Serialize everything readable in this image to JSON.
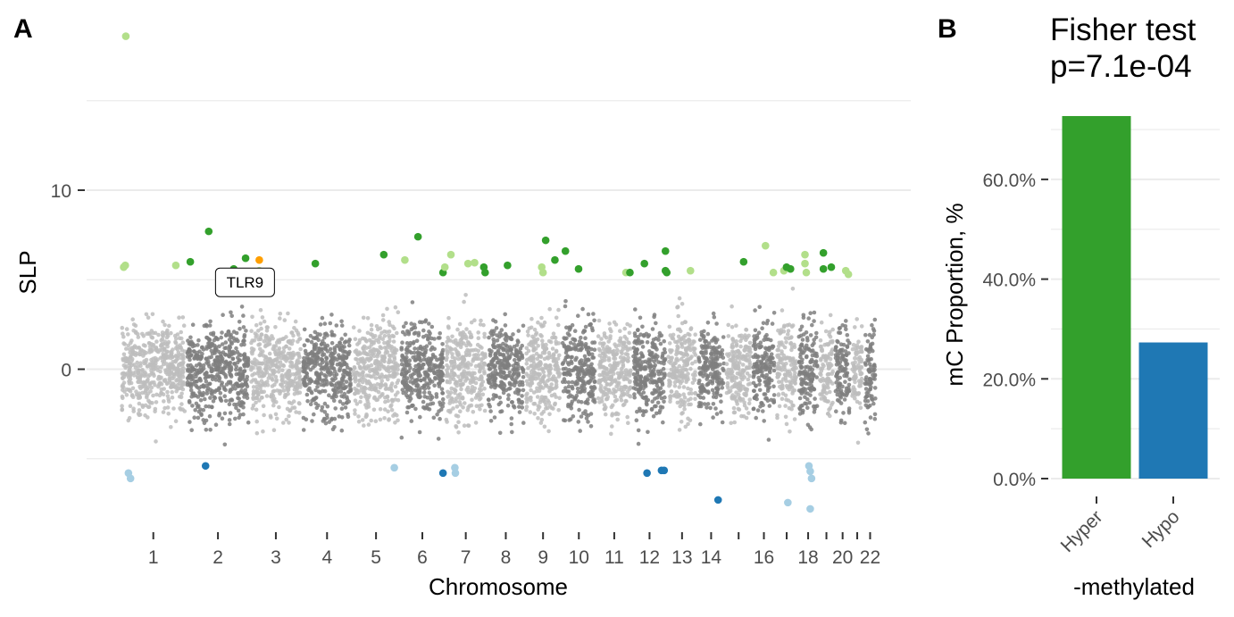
{
  "panels": {
    "a": {
      "label": "A"
    },
    "b": {
      "label": "B",
      "title_line1": "Fisher test",
      "title_line2": "p=7.1e-04"
    }
  },
  "colors": {
    "chr_light": "#bdbdbd",
    "chr_dark": "#7f7f7f",
    "hyper_sig": "#33a02c",
    "hyper_weak": "#b2df8a",
    "hypo_sig": "#1f78b4",
    "hypo_weak": "#a6cee3",
    "highlight": "#ff9f00",
    "grid": "#ebebeb",
    "axis_text": "#4d4d4d"
  },
  "chart_data": [
    {
      "type": "scatter",
      "subtype": "manhattan",
      "xlabel": "Chromosome",
      "ylabel": "SLP",
      "ylim": [
        -8.8,
        18.5
      ],
      "yticks": [
        0,
        10
      ],
      "grid": true,
      "chromosomes": [
        {
          "label": "1",
          "start": 0,
          "end": 249
        },
        {
          "label": "2",
          "start": 249,
          "end": 491
        },
        {
          "label": "3",
          "start": 491,
          "end": 689
        },
        {
          "label": "4",
          "start": 689,
          "end": 880
        },
        {
          "label": "5",
          "start": 880,
          "end": 1061
        },
        {
          "label": "6",
          "start": 1061,
          "end": 1232
        },
        {
          "label": "7",
          "start": 1232,
          "end": 1391
        },
        {
          "label": "8",
          "start": 1391,
          "end": 1536
        },
        {
          "label": "9",
          "start": 1536,
          "end": 1674
        },
        {
          "label": "10",
          "start": 1674,
          "end": 1808
        },
        {
          "label": "11",
          "start": 1808,
          "end": 1943
        },
        {
          "label": "12",
          "start": 1943,
          "end": 2076
        },
        {
          "label": "13",
          "start": 2076,
          "end": 2190
        },
        {
          "label": "14",
          "start": 2190,
          "end": 2297
        },
        {
          "label": "",
          "start": 2297,
          "end": 2399
        },
        {
          "label": "16",
          "start": 2399,
          "end": 2489
        },
        {
          "label": "",
          "start": 2489,
          "end": 2572
        },
        {
          "label": "18",
          "start": 2572,
          "end": 2652
        },
        {
          "label": "",
          "start": 2652,
          "end": 2711
        },
        {
          "label": "20",
          "start": 2711,
          "end": 2775
        },
        {
          "label": "",
          "start": 2775,
          "end": 2822
        },
        {
          "label": "22",
          "start": 2822,
          "end": 2873
        }
      ],
      "significant_points": [
        {
          "x": 20,
          "y": 18.6,
          "cls": "hyper_weak"
        },
        {
          "x": 12,
          "y": 5.7,
          "cls": "hyper_weak"
        },
        {
          "x": 18,
          "y": 5.8,
          "cls": "hyper_weak"
        },
        {
          "x": 210,
          "y": 5.8,
          "cls": "hyper_weak"
        },
        {
          "x": 265,
          "y": 6.0,
          "cls": "hyper_sig"
        },
        {
          "x": 335,
          "y": 7.7,
          "cls": "hyper_sig"
        },
        {
          "x": 430,
          "y": 5.6,
          "cls": "hyper_sig"
        },
        {
          "x": 475,
          "y": 6.2,
          "cls": "hyper_sig"
        },
        {
          "x": 527,
          "y": 6.1,
          "cls": "highlight"
        },
        {
          "x": 527,
          "y": 5.5,
          "cls": "hyper_weak"
        },
        {
          "x": 740,
          "y": 5.9,
          "cls": "hyper_sig"
        },
        {
          "x": 1000,
          "y": 6.4,
          "cls": "hyper_sig"
        },
        {
          "x": 1080,
          "y": 6.1,
          "cls": "hyper_weak"
        },
        {
          "x": 1130,
          "y": 7.4,
          "cls": "hyper_sig"
        },
        {
          "x": 1225,
          "y": 5.4,
          "cls": "hyper_sig"
        },
        {
          "x": 1232,
          "y": 5.7,
          "cls": "hyper_weak"
        },
        {
          "x": 1255,
          "y": 6.4,
          "cls": "hyper_weak"
        },
        {
          "x": 1320,
          "y": 5.9,
          "cls": "hyper_weak"
        },
        {
          "x": 1345,
          "y": 5.95,
          "cls": "hyper_weak"
        },
        {
          "x": 1380,
          "y": 5.7,
          "cls": "hyper_sig"
        },
        {
          "x": 1385,
          "y": 5.4,
          "cls": "hyper_sig"
        },
        {
          "x": 1470,
          "y": 5.8,
          "cls": "hyper_sig"
        },
        {
          "x": 1600,
          "y": 5.7,
          "cls": "hyper_weak"
        },
        {
          "x": 1605,
          "y": 5.4,
          "cls": "hyper_weak"
        },
        {
          "x": 1615,
          "y": 7.2,
          "cls": "hyper_sig"
        },
        {
          "x": 1650,
          "y": 6.1,
          "cls": "hyper_sig"
        },
        {
          "x": 1690,
          "y": 6.6,
          "cls": "hyper_sig"
        },
        {
          "x": 1740,
          "y": 5.6,
          "cls": "hyper_sig"
        },
        {
          "x": 1920,
          "y": 5.4,
          "cls": "hyper_weak"
        },
        {
          "x": 1935,
          "y": 5.4,
          "cls": "hyper_sig"
        },
        {
          "x": 1990,
          "y": 5.9,
          "cls": "hyper_sig"
        },
        {
          "x": 2070,
          "y": 6.6,
          "cls": "hyper_sig"
        },
        {
          "x": 2070,
          "y": 5.5,
          "cls": "hyper_sig"
        },
        {
          "x": 2075,
          "y": 5.4,
          "cls": "hyper_sig"
        },
        {
          "x": 2165,
          "y": 5.5,
          "cls": "hyper_weak"
        },
        {
          "x": 2367,
          "y": 6.0,
          "cls": "hyper_sig"
        },
        {
          "x": 2450,
          "y": 6.9,
          "cls": "hyper_weak"
        },
        {
          "x": 2480,
          "y": 5.4,
          "cls": "hyper_weak"
        },
        {
          "x": 2520,
          "y": 5.5,
          "cls": "hyper_weak"
        },
        {
          "x": 2530,
          "y": 5.7,
          "cls": "hyper_sig"
        },
        {
          "x": 2545,
          "y": 5.6,
          "cls": "hyper_sig"
        },
        {
          "x": 2600,
          "y": 6.4,
          "cls": "hyper_weak"
        },
        {
          "x": 2600,
          "y": 5.9,
          "cls": "hyper_weak"
        },
        {
          "x": 2605,
          "y": 5.4,
          "cls": "hyper_weak"
        },
        {
          "x": 2670,
          "y": 6.5,
          "cls": "hyper_sig"
        },
        {
          "x": 2670,
          "y": 5.6,
          "cls": "hyper_sig"
        },
        {
          "x": 2700,
          "y": 5.7,
          "cls": "hyper_sig"
        },
        {
          "x": 2755,
          "y": 5.5,
          "cls": "hyper_weak"
        },
        {
          "x": 2765,
          "y": 5.3,
          "cls": "hyper_weak"
        },
        {
          "x": 30,
          "y": -5.8,
          "cls": "hypo_weak"
        },
        {
          "x": 38,
          "y": -6.1,
          "cls": "hypo_weak"
        },
        {
          "x": 323,
          "y": -5.4,
          "cls": "hypo_sig"
        },
        {
          "x": 1040,
          "y": -5.5,
          "cls": "hypo_weak"
        },
        {
          "x": 1225,
          "y": -5.8,
          "cls": "hypo_sig"
        },
        {
          "x": 1270,
          "y": -5.5,
          "cls": "hypo_weak"
        },
        {
          "x": 1272,
          "y": -5.8,
          "cls": "hypo_weak"
        },
        {
          "x": 2000,
          "y": -5.8,
          "cls": "hypo_sig"
        },
        {
          "x": 2055,
          "y": -5.65,
          "cls": "hypo_sig"
        },
        {
          "x": 2065,
          "y": -5.65,
          "cls": "hypo_sig"
        },
        {
          "x": 2270,
          "y": -7.3,
          "cls": "hypo_sig"
        },
        {
          "x": 2535,
          "y": -7.45,
          "cls": "hypo_weak"
        },
        {
          "x": 2620,
          "y": -7.8,
          "cls": "hypo_weak"
        },
        {
          "x": 2615,
          "y": -5.4,
          "cls": "hypo_weak"
        },
        {
          "x": 2620,
          "y": -5.7,
          "cls": "hypo_weak"
        },
        {
          "x": 2625,
          "y": -6.1,
          "cls": "hypo_weak"
        }
      ],
      "annotation": {
        "text": "TLR9",
        "x": 527,
        "y": 6.1
      }
    },
    {
      "type": "bar",
      "title": "Fisher test p=7.1e-04",
      "xlabel": "-methylated",
      "ylabel": "mC Proportion, %",
      "categories": [
        "Hyper",
        "Hypo"
      ],
      "values": [
        72.7,
        27.3
      ],
      "ylim": [
        0,
        76
      ],
      "yticks": [
        "0.0%",
        "20.0%",
        "40.0%",
        "60.0%"
      ],
      "colors": [
        "#33a02c",
        "#1f78b4"
      ],
      "grid": true
    }
  ]
}
